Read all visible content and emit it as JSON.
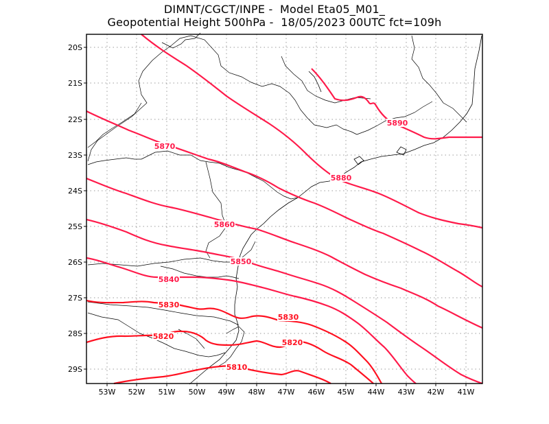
{
  "title": {
    "line1": "DIMNT/CGCT/INPE -  Model Eta05_M01_",
    "line2": "Geopotential Height 500hPa -  18/05/2023 00UTC fct=109h"
  },
  "map": {
    "lat_labels": [
      "20S",
      "21S",
      "22S",
      "23S",
      "24S",
      "25S",
      "26S",
      "27S",
      "28S",
      "29S"
    ],
    "lon_labels": [
      "53W",
      "52W",
      "51W",
      "50W",
      "49W",
      "48W",
      "47W",
      "46W",
      "45W",
      "44W",
      "43W",
      "42W",
      "41W"
    ],
    "contour_color": "#ff1a4a",
    "coast_color": "#000000",
    "contours": [
      {
        "value": "5810",
        "labels": [
          "5810"
        ]
      },
      {
        "value": "5820",
        "labels": [
          "5820",
          "5820"
        ]
      },
      {
        "value": "5830",
        "labels": [
          "5830",
          "5830"
        ]
      },
      {
        "value": "5840",
        "labels": [
          "5840"
        ]
      },
      {
        "value": "5850",
        "labels": [
          "5850"
        ]
      },
      {
        "value": "5860",
        "labels": [
          "5860"
        ]
      },
      {
        "value": "5870",
        "labels": [
          "5870"
        ]
      },
      {
        "value": "5880",
        "labels": [
          "5880"
        ]
      },
      {
        "value": "5890",
        "labels": [
          "5890"
        ]
      }
    ]
  }
}
